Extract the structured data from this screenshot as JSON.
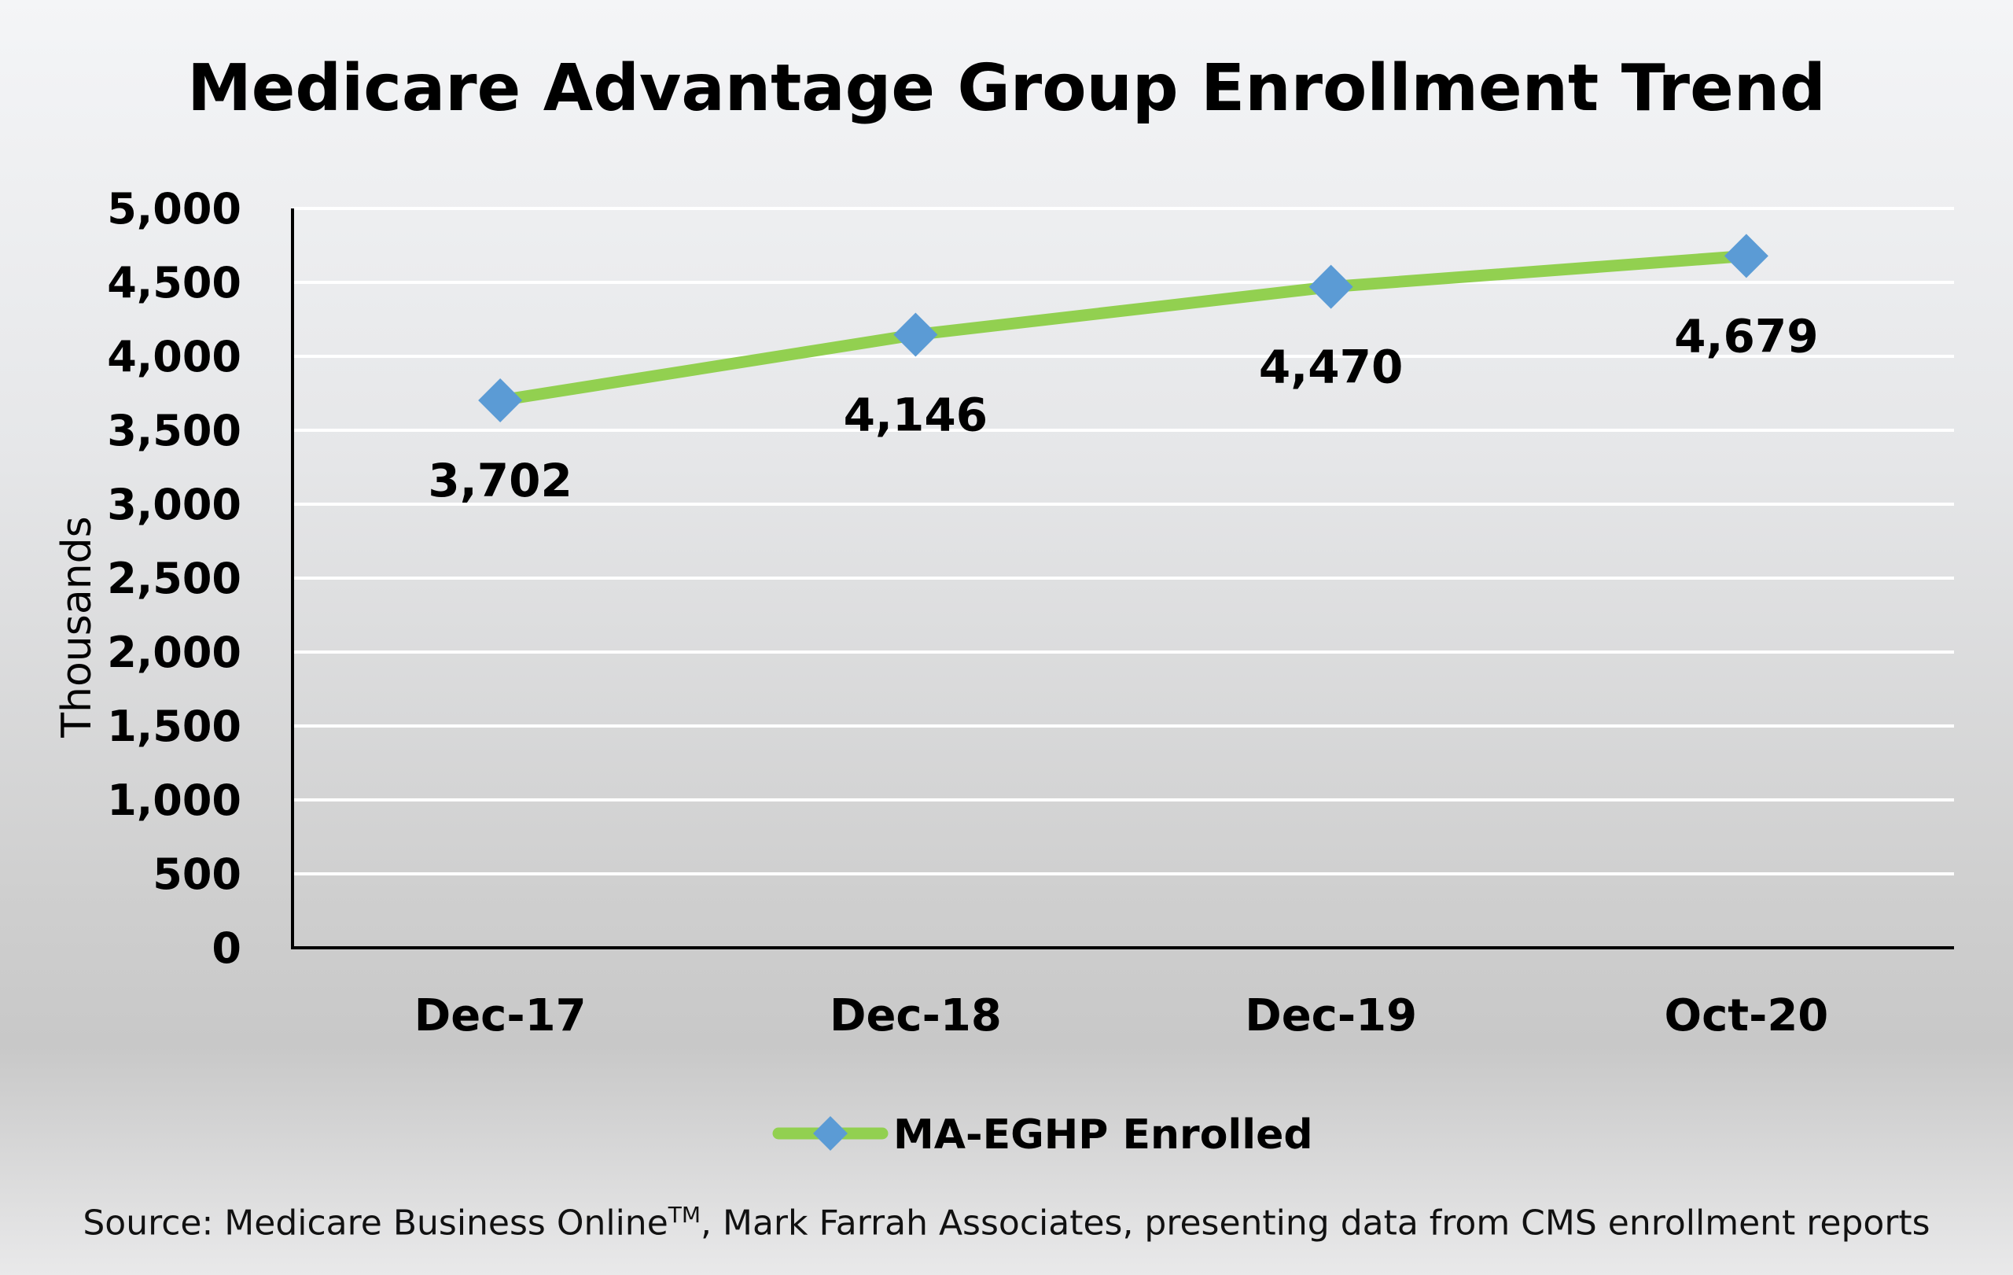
{
  "chart_data": {
    "type": "line",
    "title": "Medicare Advantage Group Enrollment Trend",
    "xlabel": "",
    "ylabel": "Thousands",
    "categories": [
      "Dec-17",
      "Dec-18",
      "Dec-19",
      "Oct-20"
    ],
    "series": [
      {
        "name": "MA-EGHP Enrolled",
        "values": [
          3702,
          4146,
          4470,
          4679
        ],
        "data_labels": [
          "3,702",
          "4,146",
          "4,470",
          "4,679"
        ]
      }
    ],
    "ylim": [
      0,
      5000
    ],
    "yticks": [
      0,
      500,
      1000,
      1500,
      2000,
      2500,
      3000,
      3500,
      4000,
      4500,
      5000
    ],
    "ytick_labels": [
      "0",
      "500",
      "1,000",
      "1,500",
      "2,000",
      "2,500",
      "3,000",
      "3,500",
      "4,000",
      "4,500",
      "5,000"
    ],
    "grid": true,
    "legend": "bottom-center",
    "line_color": "#92d050",
    "marker_color": "#5b9bd5"
  },
  "source": {
    "prefix": "Source: Medicare Business Online",
    "trademark": "TM",
    "suffix": ", Mark Farrah Associates, presenting data from CMS enrollment reports"
  }
}
